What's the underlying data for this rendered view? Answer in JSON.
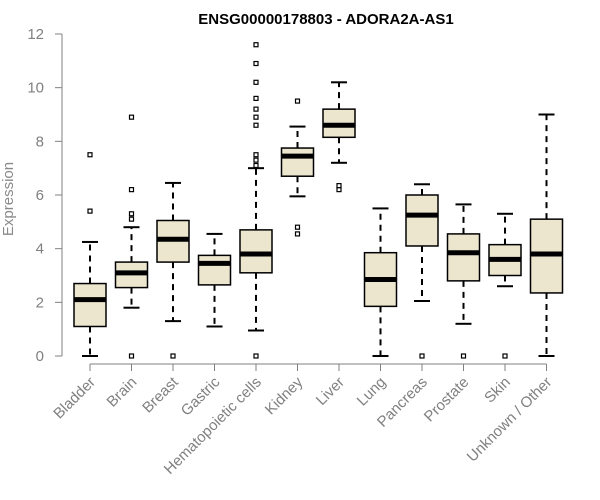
{
  "chart_data": {
    "type": "boxplot",
    "title": "ENSG00000178803 - ADORA2A-AS1",
    "xlabel": "",
    "ylabel": "Expression",
    "ylim": [
      0,
      12
    ],
    "yticks": [
      0,
      2,
      4,
      6,
      8,
      10,
      12
    ],
    "colors": {
      "box_fill": "#ede6cf",
      "stroke": "#000000",
      "axis": "#808080"
    },
    "categories": [
      "Bladder",
      "Brain",
      "Breast",
      "Gastric",
      "Hematopoietic cells",
      "Kidney",
      "Liver",
      "Lung",
      "Pancreas",
      "Prostate",
      "Skin",
      "Unknown / Other"
    ],
    "boxes": [
      {
        "category": "Bladder",
        "whisker_low": 0.0,
        "q1": 1.1,
        "median": 2.1,
        "q3": 2.7,
        "whisker_high": 4.25,
        "outliers": [
          5.4,
          7.5
        ]
      },
      {
        "category": "Brain",
        "whisker_low": 1.8,
        "q1": 2.55,
        "median": 3.1,
        "q3": 3.5,
        "whisker_high": 4.8,
        "outliers": [
          0.0,
          5.1,
          5.3,
          6.2,
          8.9
        ]
      },
      {
        "category": "Breast",
        "whisker_low": 1.3,
        "q1": 3.5,
        "median": 4.35,
        "q3": 5.05,
        "whisker_high": 6.45,
        "outliers": [
          0.0
        ]
      },
      {
        "category": "Gastric",
        "whisker_low": 1.1,
        "q1": 2.65,
        "median": 3.45,
        "q3": 3.75,
        "whisker_high": 4.55,
        "outliers": []
      },
      {
        "category": "Hematopoietic cells",
        "whisker_low": 0.95,
        "q1": 3.1,
        "median": 3.8,
        "q3": 4.7,
        "whisker_high": 7.0,
        "outliers": [
          0.0,
          7.1,
          7.3,
          7.5,
          8.6,
          8.9,
          9.2,
          9.6,
          10.2,
          10.9,
          11.6
        ]
      },
      {
        "category": "Kidney",
        "whisker_low": 5.95,
        "q1": 6.7,
        "median": 7.45,
        "q3": 7.75,
        "whisker_high": 8.55,
        "outliers": [
          4.55,
          4.8,
          9.5
        ]
      },
      {
        "category": "Liver",
        "whisker_low": 7.2,
        "q1": 8.15,
        "median": 8.6,
        "q3": 9.2,
        "whisker_high": 10.2,
        "outliers": [
          6.2,
          6.35
        ]
      },
      {
        "category": "Lung",
        "whisker_low": 0.0,
        "q1": 1.85,
        "median": 2.85,
        "q3": 3.85,
        "whisker_high": 5.5,
        "outliers": []
      },
      {
        "category": "Pancreas",
        "whisker_low": 2.05,
        "q1": 4.1,
        "median": 5.25,
        "q3": 6.0,
        "whisker_high": 6.4,
        "outliers": [
          0.0
        ]
      },
      {
        "category": "Prostate",
        "whisker_low": 1.2,
        "q1": 2.8,
        "median": 3.85,
        "q3": 4.55,
        "whisker_high": 5.65,
        "outliers": [
          0.0
        ]
      },
      {
        "category": "Skin",
        "whisker_low": 2.6,
        "q1": 3.0,
        "median": 3.6,
        "q3": 4.15,
        "whisker_high": 5.3,
        "outliers": [
          0.0
        ]
      },
      {
        "category": "Unknown / Other",
        "whisker_low": 0.0,
        "q1": 2.35,
        "median": 3.8,
        "q3": 5.1,
        "whisker_high": 9.0,
        "outliers": []
      }
    ]
  }
}
